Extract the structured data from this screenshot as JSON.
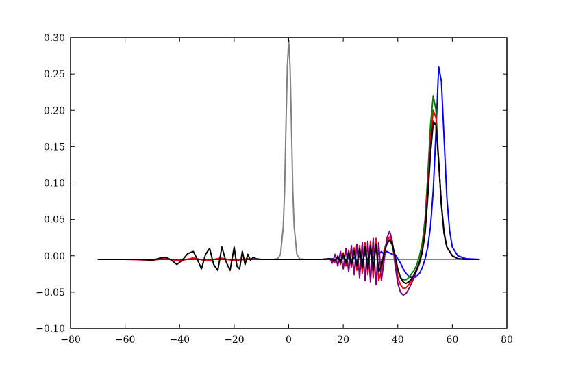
{
  "chart_data": {
    "type": "line",
    "title": "",
    "xlabel": "",
    "ylabel": "",
    "xlim": [
      -80,
      80
    ],
    "ylim": [
      -0.1,
      0.3
    ],
    "grid": false,
    "x_ticks": [
      -80,
      -60,
      -40,
      -20,
      0,
      20,
      40,
      60,
      80
    ],
    "x_tick_labels": [
      "−80",
      "−60",
      "−40",
      "−20",
      "0",
      "20",
      "40",
      "60",
      "80"
    ],
    "y_ticks": [
      -0.1,
      -0.05,
      0.0,
      0.05,
      0.1,
      0.15,
      0.2,
      0.25,
      0.3
    ],
    "y_tick_labels": [
      "−0.10",
      "−0.05",
      "0.00",
      "0.05",
      "0.10",
      "0.15",
      "0.20",
      "0.25",
      "0.30"
    ],
    "series": [
      {
        "color": "#808080",
        "x": [
          -70,
          -10,
          -6,
          -4,
          -3,
          -2,
          -1.5,
          -1,
          -0.5,
          0,
          0.5,
          1,
          1.5,
          2,
          3,
          4,
          6,
          10,
          70
        ],
        "y": [
          -0.005,
          -0.005,
          -0.005,
          -0.004,
          0.002,
          0.04,
          0.09,
          0.18,
          0.26,
          0.296,
          0.26,
          0.18,
          0.09,
          0.04,
          0.002,
          -0.004,
          -0.005,
          -0.005,
          -0.005
        ]
      },
      {
        "color": "#0000ff",
        "x": [
          -70,
          10,
          14,
          16,
          17,
          18,
          19,
          20,
          21,
          22,
          23,
          24,
          25,
          26,
          27,
          28,
          29,
          30,
          31,
          32,
          33,
          34,
          35,
          36,
          37,
          38,
          39,
          40,
          41,
          42,
          43,
          44,
          45,
          46,
          47,
          48,
          49,
          50,
          51,
          52,
          53,
          54,
          55,
          56,
          57,
          58,
          59,
          60,
          62,
          65,
          70
        ],
        "y": [
          -0.005,
          -0.005,
          -0.005,
          -0.004,
          -0.006,
          -0.004,
          -0.006,
          -0.003,
          -0.007,
          -0.002,
          -0.008,
          -0.002,
          -0.008,
          0.0,
          -0.008,
          0.003,
          -0.006,
          0.006,
          -0.004,
          0.008,
          0.002,
          0.006,
          0.002,
          0.006,
          0.004,
          0.002,
          0.002,
          -0.004,
          -0.01,
          -0.018,
          -0.024,
          -0.028,
          -0.03,
          -0.03,
          -0.028,
          -0.024,
          -0.016,
          -0.005,
          0.012,
          0.04,
          0.09,
          0.17,
          0.26,
          0.24,
          0.16,
          0.08,
          0.035,
          0.012,
          0.0,
          -0.004,
          -0.005
        ]
      },
      {
        "color": "#008000",
        "x": [
          -70,
          12,
          15,
          17,
          18,
          19,
          20,
          21,
          22,
          23,
          24,
          25,
          26,
          27,
          28,
          29,
          30,
          31,
          32,
          33,
          34,
          35,
          36,
          37,
          38,
          39,
          40,
          41,
          42,
          43,
          44,
          45,
          46,
          47,
          48,
          49,
          50,
          51,
          52,
          53,
          54,
          55,
          56,
          57,
          58,
          60,
          62,
          65,
          70
        ],
        "y": [
          -0.005,
          -0.005,
          -0.004,
          -0.007,
          -0.002,
          -0.009,
          0.001,
          -0.01,
          0.004,
          -0.012,
          0.006,
          -0.014,
          0.01,
          -0.016,
          0.012,
          -0.018,
          0.016,
          -0.02,
          0.018,
          -0.022,
          -0.018,
          0.005,
          0.018,
          0.022,
          0.014,
          -0.006,
          -0.022,
          -0.03,
          -0.033,
          -0.033,
          -0.03,
          -0.025,
          -0.02,
          -0.012,
          0.0,
          0.018,
          0.05,
          0.11,
          0.18,
          0.22,
          0.2,
          0.13,
          0.07,
          0.032,
          0.012,
          0.0,
          -0.004,
          -0.005,
          -0.005
        ]
      },
      {
        "color": "#ff0000",
        "x": [
          -70,
          -60,
          -50,
          -45,
          -40,
          -35,
          -30,
          -25,
          -20,
          -15,
          -12,
          -10,
          12,
          15,
          17,
          18,
          19,
          20,
          21,
          22,
          23,
          24,
          25,
          26,
          27,
          28,
          29,
          30,
          31,
          32,
          33,
          34,
          35,
          36,
          37,
          38,
          39,
          40,
          41,
          42,
          43,
          44,
          45,
          46,
          47,
          48,
          49,
          50,
          51,
          52,
          53,
          54,
          55,
          56,
          57,
          58,
          60,
          62,
          65,
          70
        ],
        "y": [
          -0.005,
          -0.005,
          -0.006,
          -0.004,
          -0.007,
          -0.003,
          -0.007,
          -0.003,
          -0.007,
          -0.004,
          -0.005,
          -0.005,
          -0.005,
          -0.004,
          -0.009,
          0.0,
          -0.012,
          0.004,
          -0.014,
          0.008,
          -0.016,
          0.011,
          -0.02,
          0.014,
          -0.024,
          0.018,
          -0.026,
          0.02,
          -0.03,
          0.024,
          -0.034,
          -0.02,
          0.008,
          0.02,
          0.026,
          0.018,
          -0.008,
          -0.03,
          -0.04,
          -0.045,
          -0.044,
          -0.04,
          -0.034,
          -0.026,
          -0.018,
          -0.008,
          0.008,
          0.04,
          0.1,
          0.16,
          0.2,
          0.19,
          0.13,
          0.07,
          0.03,
          0.012,
          0.0,
          -0.004,
          -0.005,
          -0.005
        ]
      },
      {
        "color": "#800080",
        "x": [
          -70,
          12,
          15,
          16,
          17,
          18,
          19,
          20,
          21,
          22,
          23,
          24,
          25,
          26,
          27,
          28,
          29,
          30,
          31,
          32,
          33,
          34,
          35,
          36,
          37,
          38,
          39,
          40,
          41,
          42,
          43,
          44,
          45,
          46,
          47,
          48,
          49,
          50,
          51,
          52,
          53,
          54,
          55,
          56,
          57,
          58,
          60,
          62,
          65,
          70
        ],
        "y": [
          -0.005,
          -0.005,
          -0.004,
          -0.01,
          0.002,
          -0.014,
          0.006,
          -0.018,
          0.01,
          -0.022,
          0.014,
          -0.026,
          0.016,
          -0.03,
          0.018,
          -0.034,
          0.02,
          -0.036,
          0.024,
          -0.04,
          0.018,
          -0.034,
          -0.006,
          0.024,
          0.034,
          0.02,
          -0.012,
          -0.038,
          -0.05,
          -0.054,
          -0.052,
          -0.046,
          -0.038,
          -0.03,
          -0.02,
          -0.01,
          0.005,
          0.035,
          0.09,
          0.15,
          0.185,
          0.18,
          0.13,
          0.07,
          0.032,
          0.012,
          0.0,
          -0.004,
          -0.005,
          -0.005
        ]
      },
      {
        "color": "#000000",
        "x": [
          -70,
          -55,
          -50,
          -47,
          -45,
          -43,
          -41,
          -39,
          -37,
          -35,
          -33.5,
          -32,
          -30.5,
          -29,
          -27.5,
          -26,
          -24.5,
          -23,
          -21.5,
          -20,
          -19,
          -18,
          -17,
          -16,
          -15,
          -14,
          -13,
          -12,
          -10,
          12,
          15,
          17,
          18,
          19,
          20,
          21,
          22,
          23,
          24,
          25,
          26,
          27,
          28,
          29,
          30,
          31,
          32,
          33,
          34,
          35,
          36,
          37,
          38,
          39,
          40,
          41,
          42,
          43,
          44,
          45,
          46,
          47,
          48,
          49,
          50,
          51,
          52,
          53,
          54,
          55,
          56,
          57,
          58,
          60,
          62,
          65,
          70
        ],
        "y": [
          -0.005,
          -0.005,
          -0.006,
          -0.003,
          -0.002,
          -0.006,
          -0.012,
          -0.006,
          0.003,
          0.006,
          -0.005,
          -0.018,
          0.002,
          0.01,
          -0.012,
          -0.02,
          0.012,
          -0.008,
          -0.02,
          0.012,
          -0.014,
          -0.018,
          0.006,
          -0.012,
          0.002,
          -0.006,
          -0.002,
          -0.004,
          -0.005,
          -0.005,
          -0.004,
          -0.007,
          -0.001,
          -0.009,
          0.002,
          -0.01,
          0.005,
          -0.012,
          0.007,
          -0.014,
          0.01,
          -0.016,
          0.012,
          -0.018,
          0.014,
          -0.02,
          0.016,
          -0.022,
          -0.014,
          0.004,
          0.016,
          0.022,
          0.016,
          0.0,
          -0.018,
          -0.03,
          -0.036,
          -0.038,
          -0.036,
          -0.032,
          -0.026,
          -0.018,
          -0.008,
          0.006,
          0.03,
          0.08,
          0.14,
          0.183,
          0.18,
          0.13,
          0.07,
          0.03,
          0.012,
          0.0,
          -0.004,
          -0.005,
          -0.005
        ]
      }
    ]
  }
}
